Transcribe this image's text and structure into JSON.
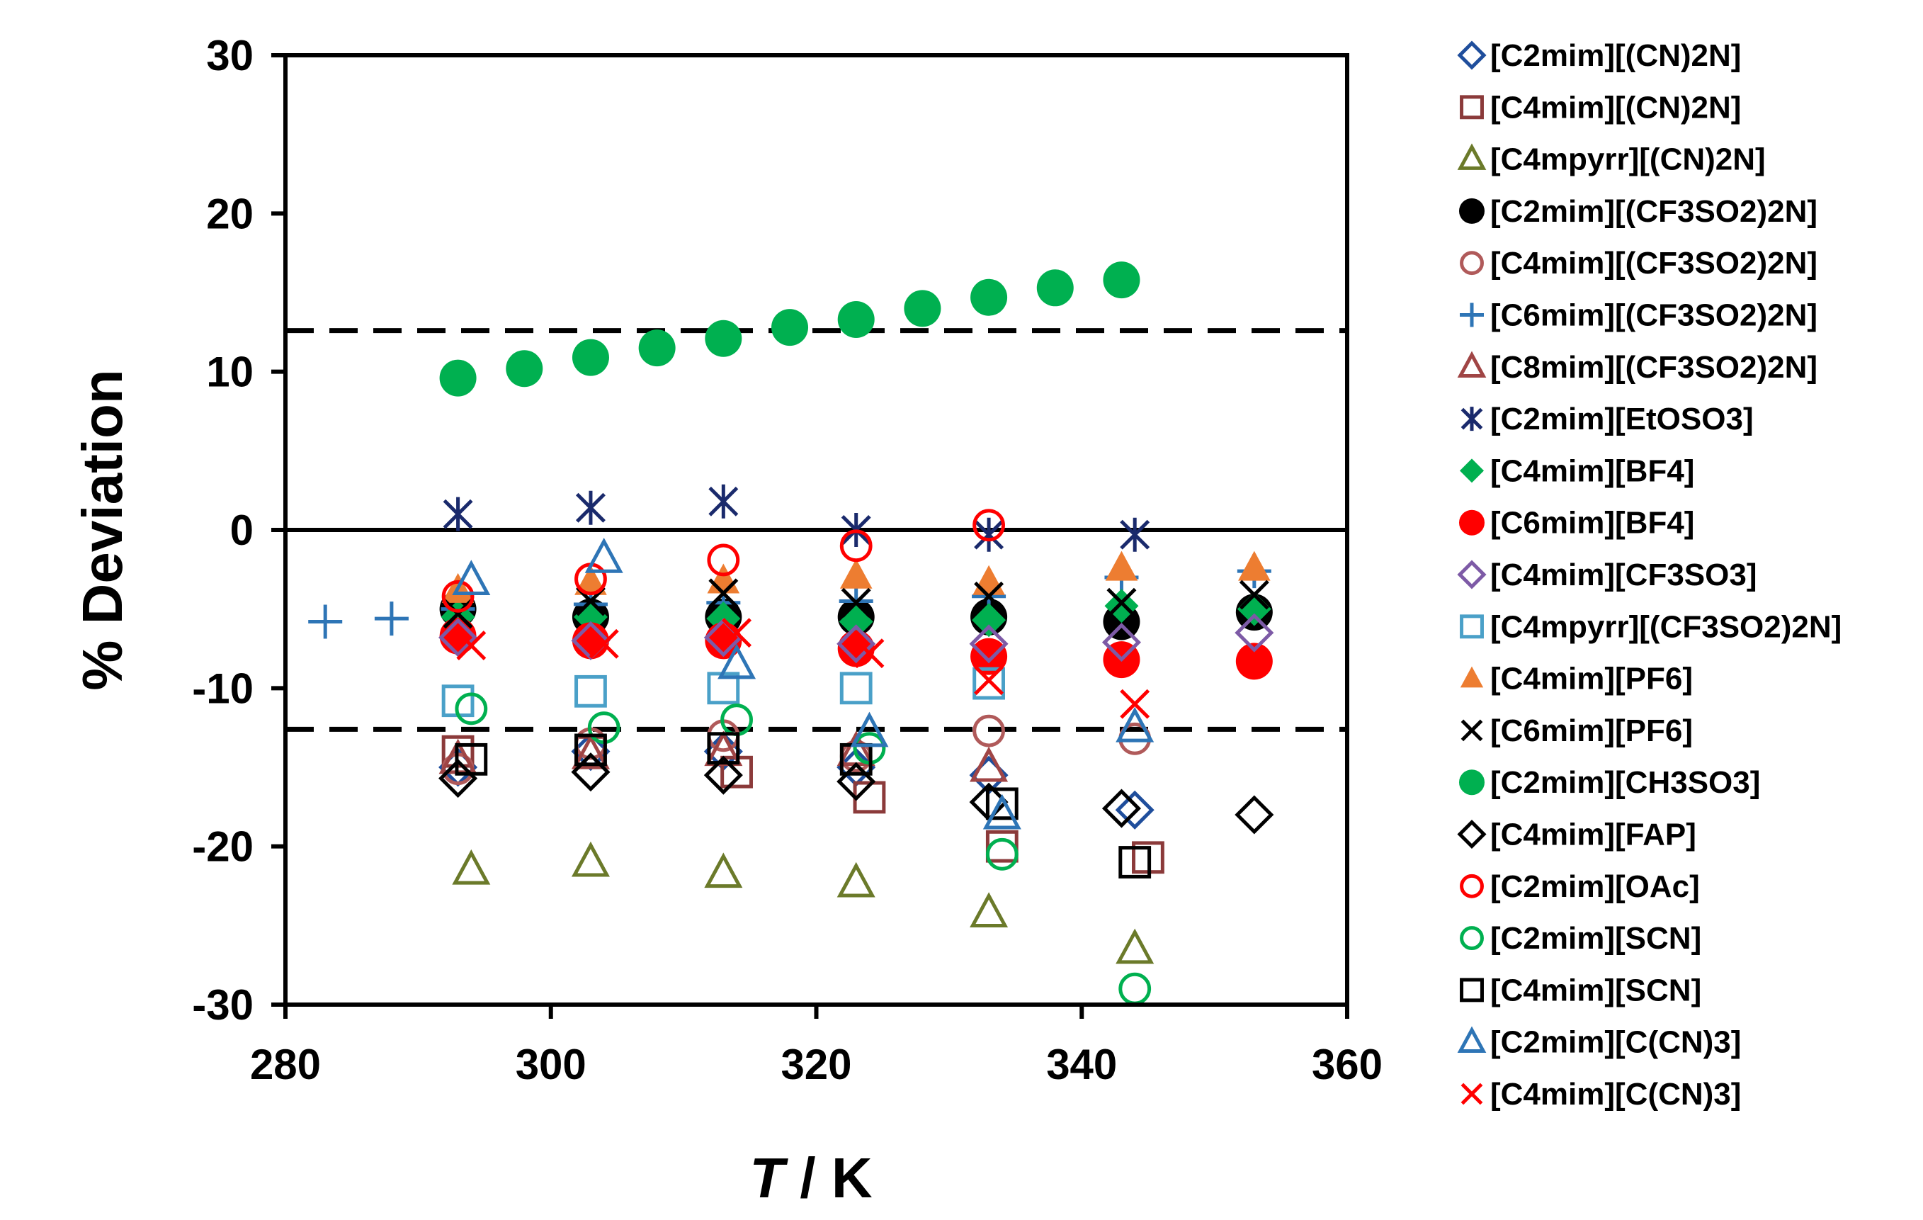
{
  "chart_data": {
    "type": "scatter",
    "title": "",
    "xlabel_italic": "T",
    "xlabel_rest": " / K",
    "ylabel": "% Deviation",
    "xlim": [
      280,
      360
    ],
    "ylim": [
      -30,
      30
    ],
    "x_ticks": [
      "280",
      "300",
      "320",
      "340",
      "360"
    ],
    "y_ticks": [
      "30",
      "20",
      "10",
      "0",
      "-10",
      "-20",
      "-30"
    ],
    "reference_lines": [
      {
        "y": 0,
        "style": "solid"
      },
      {
        "y": 12.6,
        "style": "dashed"
      },
      {
        "y": -12.6,
        "style": "dashed"
      }
    ],
    "legend_position": "right",
    "series": [
      {
        "name": "[C2mim][(CN)2N]",
        "marker": "diamond-open",
        "color": "#1f4e9c",
        "points": [
          [
            293,
            -15
          ],
          [
            303,
            -14
          ],
          [
            313,
            -14
          ],
          [
            323,
            -15
          ],
          [
            333,
            -15.5
          ],
          [
            344,
            -17.7
          ]
        ]
      },
      {
        "name": "[C4mim][(CN)2N]",
        "marker": "square-open",
        "color": "#8b3a3a",
        "points": [
          [
            293,
            -14
          ],
          [
            303,
            -14
          ],
          [
            314,
            -15.3
          ],
          [
            324,
            -16.9
          ],
          [
            334,
            -20
          ],
          [
            345,
            -20.7
          ]
        ]
      },
      {
        "name": "[C4mpyrr][(CN)2N]",
        "marker": "triangle-open",
        "color": "#6b7a2a",
        "points": [
          [
            294,
            -21.5
          ],
          [
            303,
            -21
          ],
          [
            313,
            -21.7
          ],
          [
            323,
            -22.3
          ],
          [
            333,
            -24.2
          ],
          [
            344,
            -26.5
          ]
        ]
      },
      {
        "name": "[C2mim][(CF3SO2)2N]",
        "marker": "circle-filled",
        "color": "#000000",
        "points": [
          [
            293,
            -5
          ],
          [
            303,
            -5.5
          ],
          [
            313,
            -5.5
          ],
          [
            323,
            -5.5
          ],
          [
            333,
            -5.5
          ],
          [
            343,
            -5.8
          ],
          [
            353,
            -5.2
          ]
        ]
      },
      {
        "name": "[C4mim][(CF3SO2)2N]",
        "marker": "circle-open",
        "color": "#b05a5a",
        "points": [
          [
            293,
            -15.1
          ],
          [
            303,
            -13.5
          ],
          [
            313,
            -13
          ],
          [
            323,
            -14.3
          ],
          [
            333,
            -12.7
          ],
          [
            344,
            -13.2
          ]
        ]
      },
      {
        "name": "[C6mim][(CF3SO2)2N]",
        "marker": "plus",
        "color": "#2e75b6",
        "points": [
          [
            283,
            -5.8
          ],
          [
            288,
            -5.6
          ],
          [
            293,
            -5
          ],
          [
            303,
            -4.7
          ],
          [
            313,
            -4.6
          ],
          [
            323,
            -4.5
          ],
          [
            333,
            -4.2
          ],
          [
            343,
            -3
          ],
          [
            353,
            -2.6
          ]
        ]
      },
      {
        "name": "[C8mim][(CF3SO2)2N]",
        "marker": "triangle-open",
        "color": "#a04545",
        "points": [
          [
            293,
            -14.5
          ],
          [
            303,
            -14.2
          ],
          [
            313,
            -14
          ],
          [
            323,
            -14
          ],
          [
            333,
            -15
          ]
        ]
      },
      {
        "name": "[C2mim][EtOSO3]",
        "marker": "asterisk",
        "color": "#1a2a6c",
        "points": [
          [
            293,
            1
          ],
          [
            303,
            1.4
          ],
          [
            313,
            1.8
          ],
          [
            323,
            0
          ],
          [
            333,
            -0.3
          ],
          [
            344,
            -0.3
          ]
        ]
      },
      {
        "name": "[C4mim][BF4]",
        "marker": "diamond-filled",
        "color": "#00b050",
        "points": [
          [
            293,
            -5.5
          ],
          [
            303,
            -5.5
          ],
          [
            313,
            -5.6
          ],
          [
            323,
            -5.8
          ],
          [
            333,
            -5.7
          ],
          [
            343,
            -4.8
          ],
          [
            353,
            -5
          ]
        ]
      },
      {
        "name": "[C6mim][BF4]",
        "marker": "circle-filled",
        "color": "#ff0000",
        "points": [
          [
            293,
            -6.7
          ],
          [
            303,
            -7
          ],
          [
            313,
            -7
          ],
          [
            323,
            -7.5
          ],
          [
            333,
            -8
          ],
          [
            343,
            -8.2
          ],
          [
            353,
            -8.3
          ]
        ]
      },
      {
        "name": "[C4mim][CF3SO3]",
        "marker": "diamond-open",
        "color": "#7d5aa6",
        "points": [
          [
            293,
            -6.8
          ],
          [
            303,
            -7
          ],
          [
            313,
            -6.8
          ],
          [
            323,
            -7.2
          ],
          [
            333,
            -7.2
          ],
          [
            343,
            -7.1
          ],
          [
            353,
            -6.5
          ]
        ]
      },
      {
        "name": "[C4mpyrr][(CF3SO2)2N]",
        "marker": "square-open",
        "color": "#4aa0c8",
        "points": [
          [
            293,
            -10.8
          ],
          [
            303,
            -10.2
          ],
          [
            313,
            -10
          ],
          [
            323,
            -10
          ],
          [
            333,
            -9.7
          ]
        ]
      },
      {
        "name": "[C4mim][PF6]",
        "marker": "triangle-filled",
        "color": "#ed7d31",
        "points": [
          [
            293,
            -3.8
          ],
          [
            303,
            -3.3
          ],
          [
            313,
            -3.2
          ],
          [
            323,
            -2.9
          ],
          [
            333,
            -3.3
          ],
          [
            343,
            -2.4
          ],
          [
            353,
            -2.4
          ]
        ]
      },
      {
        "name": "[C6mim][PF6]",
        "marker": "x",
        "color": "#000000",
        "points": [
          [
            293,
            -5.3
          ],
          [
            303,
            -4.5
          ],
          [
            313,
            -4
          ],
          [
            323,
            -4.6
          ],
          [
            333,
            -4.2
          ],
          [
            343,
            -4.6
          ],
          [
            353,
            -4.1
          ]
        ]
      },
      {
        "name": "[C2mim][CH3SO3]",
        "marker": "circle-filled",
        "color": "#00b050",
        "points": [
          [
            293,
            9.6
          ],
          [
            298,
            10.2
          ],
          [
            303,
            10.9
          ],
          [
            308,
            11.5
          ],
          [
            313,
            12.1
          ],
          [
            318,
            12.8
          ],
          [
            323,
            13.3
          ],
          [
            328,
            14
          ],
          [
            333,
            14.7
          ],
          [
            338,
            15.3
          ],
          [
            343,
            15.8
          ]
        ]
      },
      {
        "name": "[C4mim][FAP]",
        "marker": "diamond-open",
        "color": "#000000",
        "points": [
          [
            293,
            -15.7
          ],
          [
            303,
            -15.3
          ],
          [
            313,
            -15.5
          ],
          [
            323,
            -15.9
          ],
          [
            333,
            -17.2
          ],
          [
            343,
            -17.6
          ],
          [
            353,
            -18
          ]
        ]
      },
      {
        "name": "[C2mim][OAc]",
        "marker": "circle-open",
        "color": "#ff0000",
        "points": [
          [
            293,
            -4.2
          ],
          [
            303,
            -3.1
          ],
          [
            313,
            -1.9
          ],
          [
            323,
            -1
          ],
          [
            333,
            0.3
          ]
        ]
      },
      {
        "name": "[C2mim][SCN]",
        "marker": "circle-open",
        "color": "#00b050",
        "points": [
          [
            294,
            -11.3
          ],
          [
            304,
            -12.5
          ],
          [
            314,
            -12
          ],
          [
            324,
            -13.8
          ],
          [
            334,
            -20.5
          ],
          [
            344,
            -29
          ]
        ]
      },
      {
        "name": "[C4mim][SCN]",
        "marker": "square-open",
        "color": "#000000",
        "points": [
          [
            294,
            -14.5
          ],
          [
            303,
            -13.9
          ],
          [
            313,
            -13.8
          ],
          [
            323,
            -14.5
          ],
          [
            334,
            -17.3
          ],
          [
            344,
            -21
          ]
        ]
      },
      {
        "name": "[C2mim][C(CN)3]",
        "marker": "triangle-open",
        "color": "#2e75b6",
        "points": [
          [
            294,
            -3.2
          ],
          [
            304,
            -1.8
          ],
          [
            314,
            -8.5
          ],
          [
            324,
            -12.8
          ],
          [
            334,
            -18
          ],
          [
            344,
            -12.5
          ]
        ]
      },
      {
        "name": "[C4mim][C(CN)3]",
        "marker": "x",
        "color": "#ff0000",
        "points": [
          [
            294,
            -7.3
          ],
          [
            304,
            -7.2
          ],
          [
            314,
            -6.5
          ],
          [
            324,
            -7.8
          ],
          [
            333,
            -9.5
          ],
          [
            344,
            -11
          ]
        ]
      }
    ]
  }
}
